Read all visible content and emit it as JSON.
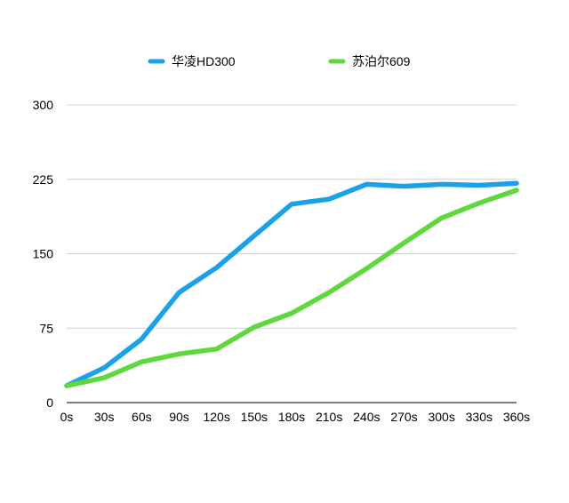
{
  "chart_data": {
    "type": "line",
    "title": "",
    "xlabel": "",
    "ylabel": "",
    "categories": [
      "0s",
      "30s",
      "60s",
      "90s",
      "120s",
      "150s",
      "180s",
      "210s",
      "240s",
      "270s",
      "300s",
      "330s",
      "360s"
    ],
    "ylim": [
      0,
      300
    ],
    "yticks": [
      0,
      75,
      150,
      225,
      300
    ],
    "grid": true,
    "legend_position": "top",
    "series": [
      {
        "name": "华凌HD300",
        "color": "#1aa1e8",
        "values": [
          17,
          35,
          64,
          111,
          136,
          168,
          200,
          205,
          220,
          218,
          220,
          219,
          221
        ]
      },
      {
        "name": "苏泊尔609",
        "color": "#5fd83d",
        "values": [
          17,
          25,
          41,
          49,
          54,
          76,
          90,
          111,
          135,
          161,
          186,
          201,
          214
        ]
      }
    ]
  }
}
